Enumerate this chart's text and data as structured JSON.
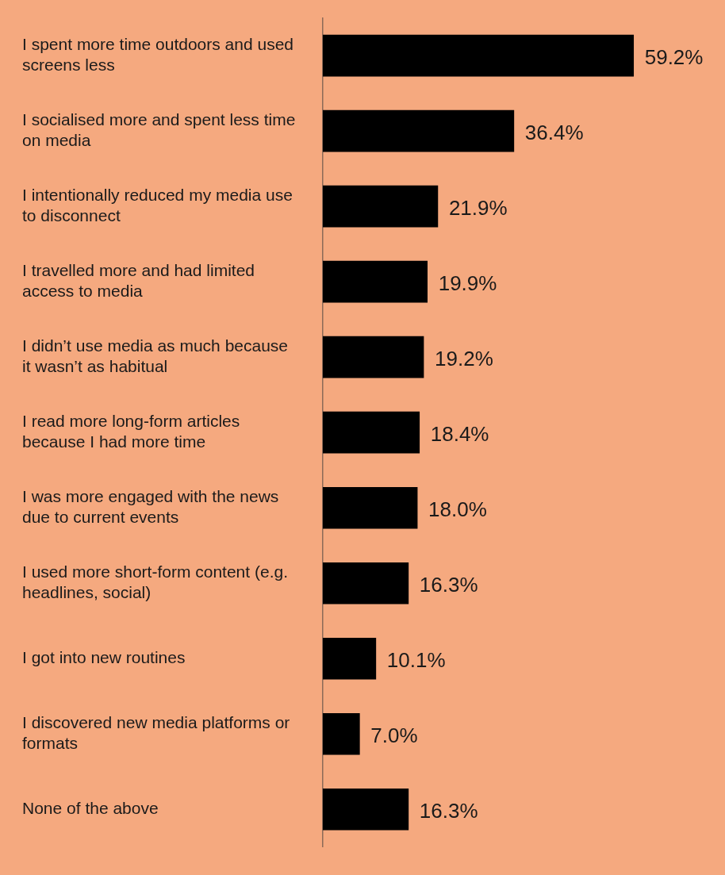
{
  "chart_data": {
    "type": "bar",
    "orientation": "horizontal",
    "categories": [
      "I spent more time outdoors and used screens less",
      "I socialised more and spent less time on media",
      "I intentionally reduced my media use to disconnect",
      "I travelled more and had limited access to media",
      "I didn’t use media as much because it wasn’t as habitual",
      "I read more long-form articles because I had more time",
      "I was more engaged with the news due to current events",
      "I used more short-form content (e.g. headlines, social)",
      "I got into new routines",
      "I discovered new media platforms or formats",
      "None of the above"
    ],
    "values": [
      59.2,
      36.4,
      21.9,
      19.9,
      19.2,
      18.4,
      18.0,
      16.3,
      10.1,
      7.0,
      16.3
    ],
    "value_labels": [
      "59.2%",
      "36.4%",
      "21.9%",
      "19.9%",
      "19.2%",
      "18.4%",
      "18.0%",
      "16.3%",
      "10.1%",
      "7.0%",
      "16.3%"
    ],
    "color": "#000000",
    "tick_labels": "y",
    "grid": false,
    "legend": false
  }
}
